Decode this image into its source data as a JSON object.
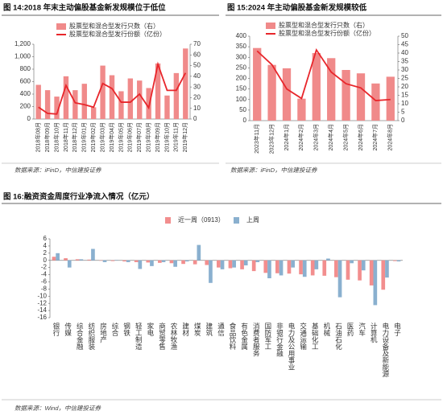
{
  "chart_data": [
    {
      "type": "combo",
      "title": "图 14:2018 年末主动偏股基金新发规模位于低位",
      "source": "数据来源：iFinD，中信建投证券",
      "categories": [
        "2018年08月",
        "2018年09月",
        "2018年10月",
        "2018年11月",
        "2018年12月",
        "2019年01月",
        "2019年02月",
        "2019年03月",
        "2019年04月",
        "2019年05月",
        "2019年06月",
        "2019年07月",
        "2019年08月",
        "2019年09月",
        "2019年10月",
        "2019年11月",
        "2019年12月"
      ],
      "series": [
        {
          "name": "股票型和混合型发行只数（右）",
          "type": "bar",
          "axis": "y2",
          "color": "#f08a8a",
          "values": [
            32,
            27,
            21,
            40,
            27,
            33,
            11,
            50,
            41,
            26,
            38,
            36,
            29,
            52,
            22,
            43,
            66
          ]
        },
        {
          "name": "股票型和混合型发行份额（亿份）",
          "type": "line",
          "color": "#e8262b",
          "values": [
            190,
            90,
            80,
            540,
            260,
            230,
            190,
            570,
            490,
            270,
            270,
            400,
            180,
            880,
            460,
            460,
            740
          ]
        }
      ],
      "ylim": [
        0,
        1200
      ],
      "yticks": [
        0,
        200,
        400,
        600,
        800,
        {
          "value": 1000,
          "label": "1,000"
        },
        {
          "value": 1200,
          "label": "1,200"
        }
      ],
      "y2lim": [
        0,
        70
      ],
      "y2ticks": [
        0,
        10,
        20,
        30,
        40,
        50,
        60,
        70
      ]
    },
    {
      "type": "combo",
      "title": "图 15:2024 年主动偏股基金新发规模较低",
      "source": "数据来源：iFinD，中信建投证券",
      "categories": [
        "2023年11月",
        "2023年12月",
        "2024年1月",
        "2024年2月",
        "2024年3月",
        "2024年4月",
        "2024年5月",
        "2024年6月",
        "2024年7月",
        "2024年8月"
      ],
      "series": [
        {
          "name": "股票型和混合型发行只数（右）",
          "type": "bar",
          "axis": "y2",
          "color": "#f08a8a",
          "values": [
            43,
            33,
            31,
            13,
            40,
            37,
            30,
            28,
            22,
            26
          ]
        },
        {
          "name": "股票型和混合型发行份额（亿份）",
          "type": "line",
          "color": "#e8262b",
          "values": [
            330,
            265,
            150,
            105,
            335,
            230,
            175,
            155,
            95,
            100
          ]
        }
      ],
      "ylim": [
        0,
        400
      ],
      "yticks": [
        0,
        50,
        100,
        150,
        200,
        250,
        300,
        350,
        400
      ],
      "y2lim": [
        0,
        50
      ],
      "y2ticks": [
        0,
        5,
        10,
        15,
        20,
        25,
        30,
        35,
        40,
        45,
        50
      ]
    },
    {
      "type": "bar",
      "title": "图 16:融资资金周度行业净流入情况（亿元）",
      "source": "数据来源：Wind，中信建投证券",
      "categories": [
        "银行",
        "传媒",
        "综合金融",
        "纺织服装",
        "房地产",
        "综合",
        "钢铁",
        "轻工制造",
        "家电",
        "商贸零售",
        "农林牧渔",
        "建材",
        "煤炭",
        "建筑",
        "通信",
        "食品饮料",
        "有色金属",
        "消费者服务",
        "国防军工",
        "非银行金融",
        "电力及公用事业",
        "交通运输",
        "基础化工",
        "机械",
        "石油石化",
        "医药",
        "汽车",
        "计算机",
        "电力设备及新能源",
        "电子"
      ],
      "series": [
        {
          "name": "近一周（0913）",
          "color": "#f28e8e",
          "values": [
            1.0,
            0.6,
            0.3,
            0.2,
            -0.1,
            -0.2,
            -0.3,
            -0.5,
            -0.6,
            -0.7,
            -0.8,
            -1.0,
            -1.1,
            -1.3,
            -2.0,
            -2.2,
            -2.5,
            -3.0,
            -3.5,
            -3.6,
            -3.7,
            -3.9,
            -4.2,
            -4.3,
            -4.7,
            -5.4,
            -5.6,
            -7.0,
            -8.2,
            -0.2
          ]
        },
        {
          "name": "上周",
          "color": "#8ab0cf",
          "values": [
            2.0,
            -2.0,
            0.3,
            3.2,
            -0.5,
            0.1,
            -0.5,
            -2.4,
            -1.6,
            -0.5,
            -1.8,
            -0.3,
            4.3,
            -6.3,
            -2.5,
            -2.0,
            -1.4,
            -0.5,
            -5.0,
            -4.2,
            -2.0,
            -4.6,
            -2.5,
            0.5,
            -10.3,
            -0.8,
            -2.8,
            -12.5,
            -4.8,
            -0.3
          ]
        }
      ],
      "ylim": [
        -16,
        6
      ],
      "yticks": [
        -16,
        -14,
        -12,
        -10,
        -8,
        -6,
        -4,
        -2,
        0,
        2,
        4,
        6
      ]
    }
  ]
}
